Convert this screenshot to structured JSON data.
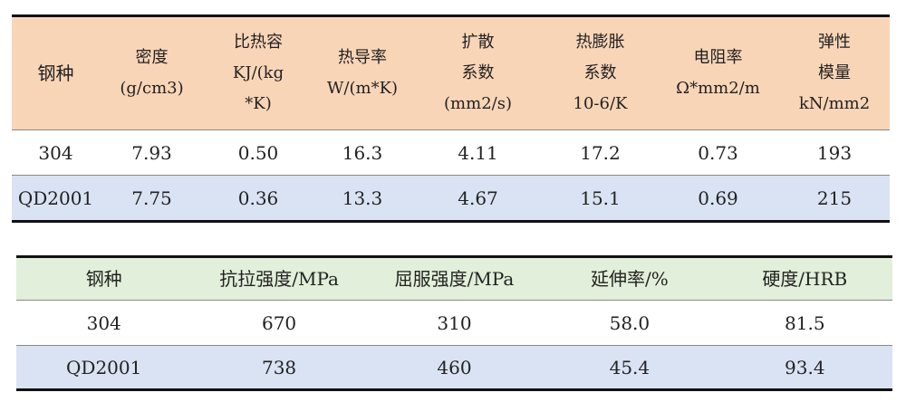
{
  "table1": {
    "headers": [
      [
        "钢种"
      ],
      [
        "密度",
        "(g/cm3)"
      ],
      [
        "比热容",
        "KJ/(kg",
        "*K)"
      ],
      [
        "热导率",
        "W/(m*K)"
      ],
      [
        "扩散",
        "系数",
        "(mm2/s)"
      ],
      [
        "热膨胀",
        "系数",
        "10-6/K"
      ],
      [
        "电阻率",
        "Ω*mm2/m"
      ],
      [
        "弹性",
        "模量",
        "kN/mm2"
      ]
    ],
    "rows": [
      [
        "304",
        "7.93",
        "0.50",
        "16.3",
        "4.11",
        "17.2",
        "0.73",
        "193"
      ],
      [
        "QD2001",
        "7.75",
        "0.36",
        "13.3",
        "4.67",
        "15.1",
        "0.69",
        "215"
      ]
    ]
  },
  "table2": {
    "headers": [
      "钢种",
      "抗拉强度/MPa",
      "屈服强度/MPa",
      "延伸率/%",
      "硬度/HRB"
    ],
    "rows": [
      [
        "304",
        "670",
        "310",
        "58.0",
        "81.5"
      ],
      [
        "QD2001",
        "738",
        "460",
        "45.4",
        "93.4"
      ]
    ]
  },
  "colors": {
    "header1": "#F9D5B7",
    "header2": "#E2EFDA",
    "alt_row": "#DAE3F3"
  }
}
